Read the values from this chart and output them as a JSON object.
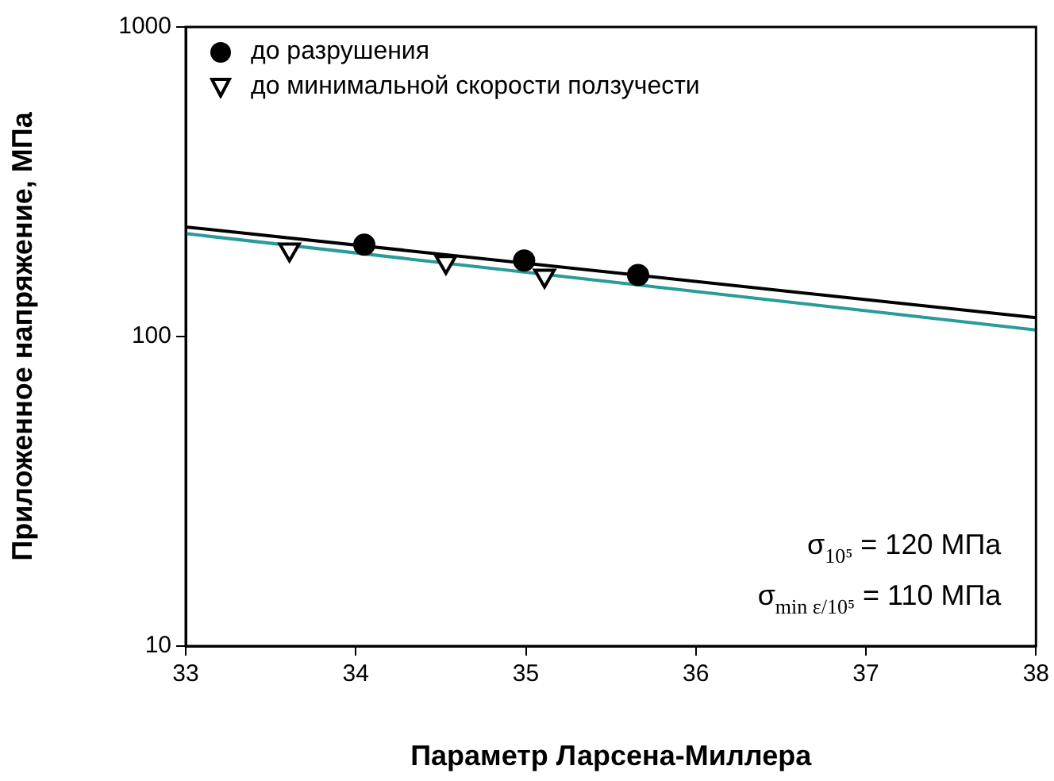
{
  "chart_data": {
    "type": "scatter",
    "xlabel": "Параметр Ларсена-Миллера",
    "ylabel": "Приложенное напряжение, МПа",
    "log": "y",
    "xlim": [
      33,
      38
    ],
    "xticks": [
      33,
      34,
      35,
      36,
      37,
      38
    ],
    "ylim": [
      10,
      1000
    ],
    "yticks": [
      10,
      100,
      1000
    ],
    "grid": false,
    "legend": "top left",
    "series": [
      {
        "name": "до разрушения",
        "marker": "circle",
        "color": "#000000",
        "x": [
          34.05,
          34.99,
          35.66
        ],
        "values": [
          198,
          176,
          158
        ]
      },
      {
        "name": "до минимальной скорости ползучести",
        "marker": "triangle",
        "color": "#000000",
        "x": [
          33.61,
          34.53,
          35.11
        ],
        "values": [
          191,
          174,
          157
        ]
      },
      {
        "type": "line",
        "marker": "none",
        "color": "#000000",
        "x": [
          33,
          38
        ],
        "values": [
          226,
          115
        ]
      },
      {
        "type": "line",
        "marker": "none",
        "color": "#2a9a9a",
        "x": [
          33,
          38
        ],
        "values": [
          215,
          105
        ]
      }
    ],
    "annotations": [
      "σ$_{10⁵}$ = 120 МПа",
      "σ$_{min ε/10⁵}$ = 110 МПа"
    ]
  }
}
